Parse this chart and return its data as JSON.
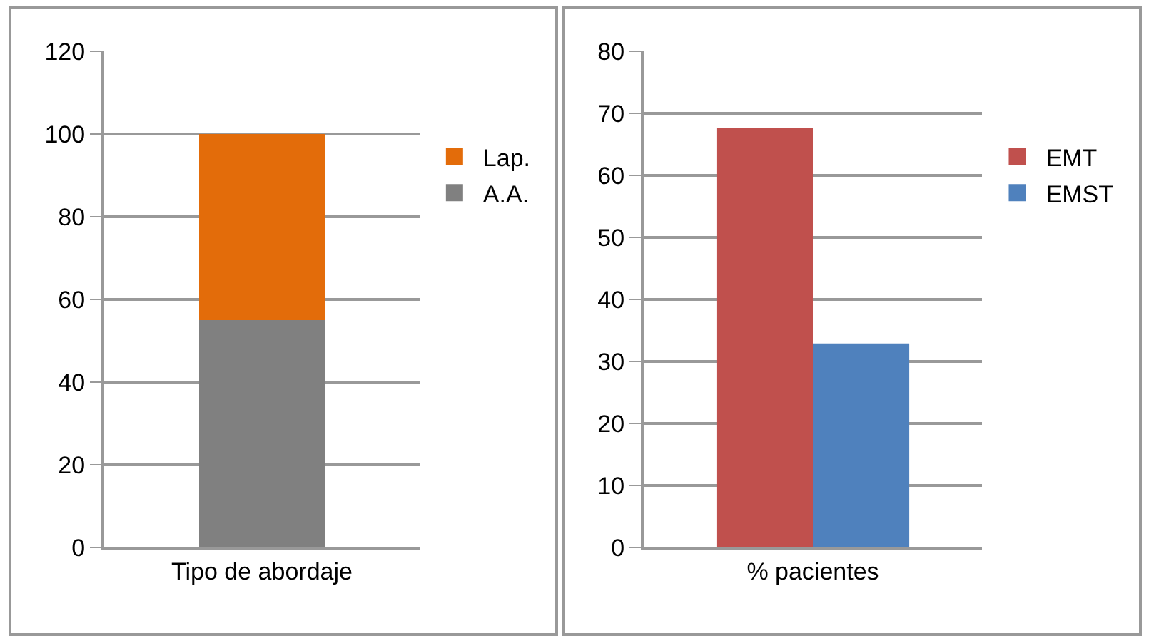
{
  "chart_data": [
    {
      "type": "bar",
      "stacked": true,
      "categories": [
        "Tipo de abordaje"
      ],
      "series": [
        {
          "name": "A.A.",
          "color": "#808080",
          "values": [
            55
          ]
        },
        {
          "name": "Lap.",
          "color": "#e36c0a",
          "values": [
            45
          ]
        }
      ],
      "ylim": [
        0,
        120
      ],
      "yticks": [
        0,
        20,
        40,
        60,
        80,
        100,
        120
      ],
      "grid": "y",
      "legend": "right"
    },
    {
      "type": "bar",
      "categories": [
        "% pacientes"
      ],
      "series": [
        {
          "name": "EMT",
          "color": "#c0504d",
          "values": [
            67.6
          ]
        },
        {
          "name": "EMST",
          "color": "#4f81bd",
          "values": [
            32.9
          ]
        }
      ],
      "ylim": [
        0,
        80
      ],
      "yticks": [
        0,
        10,
        20,
        30,
        40,
        50,
        60,
        70,
        80
      ],
      "grid": "y",
      "legend": "right"
    }
  ]
}
